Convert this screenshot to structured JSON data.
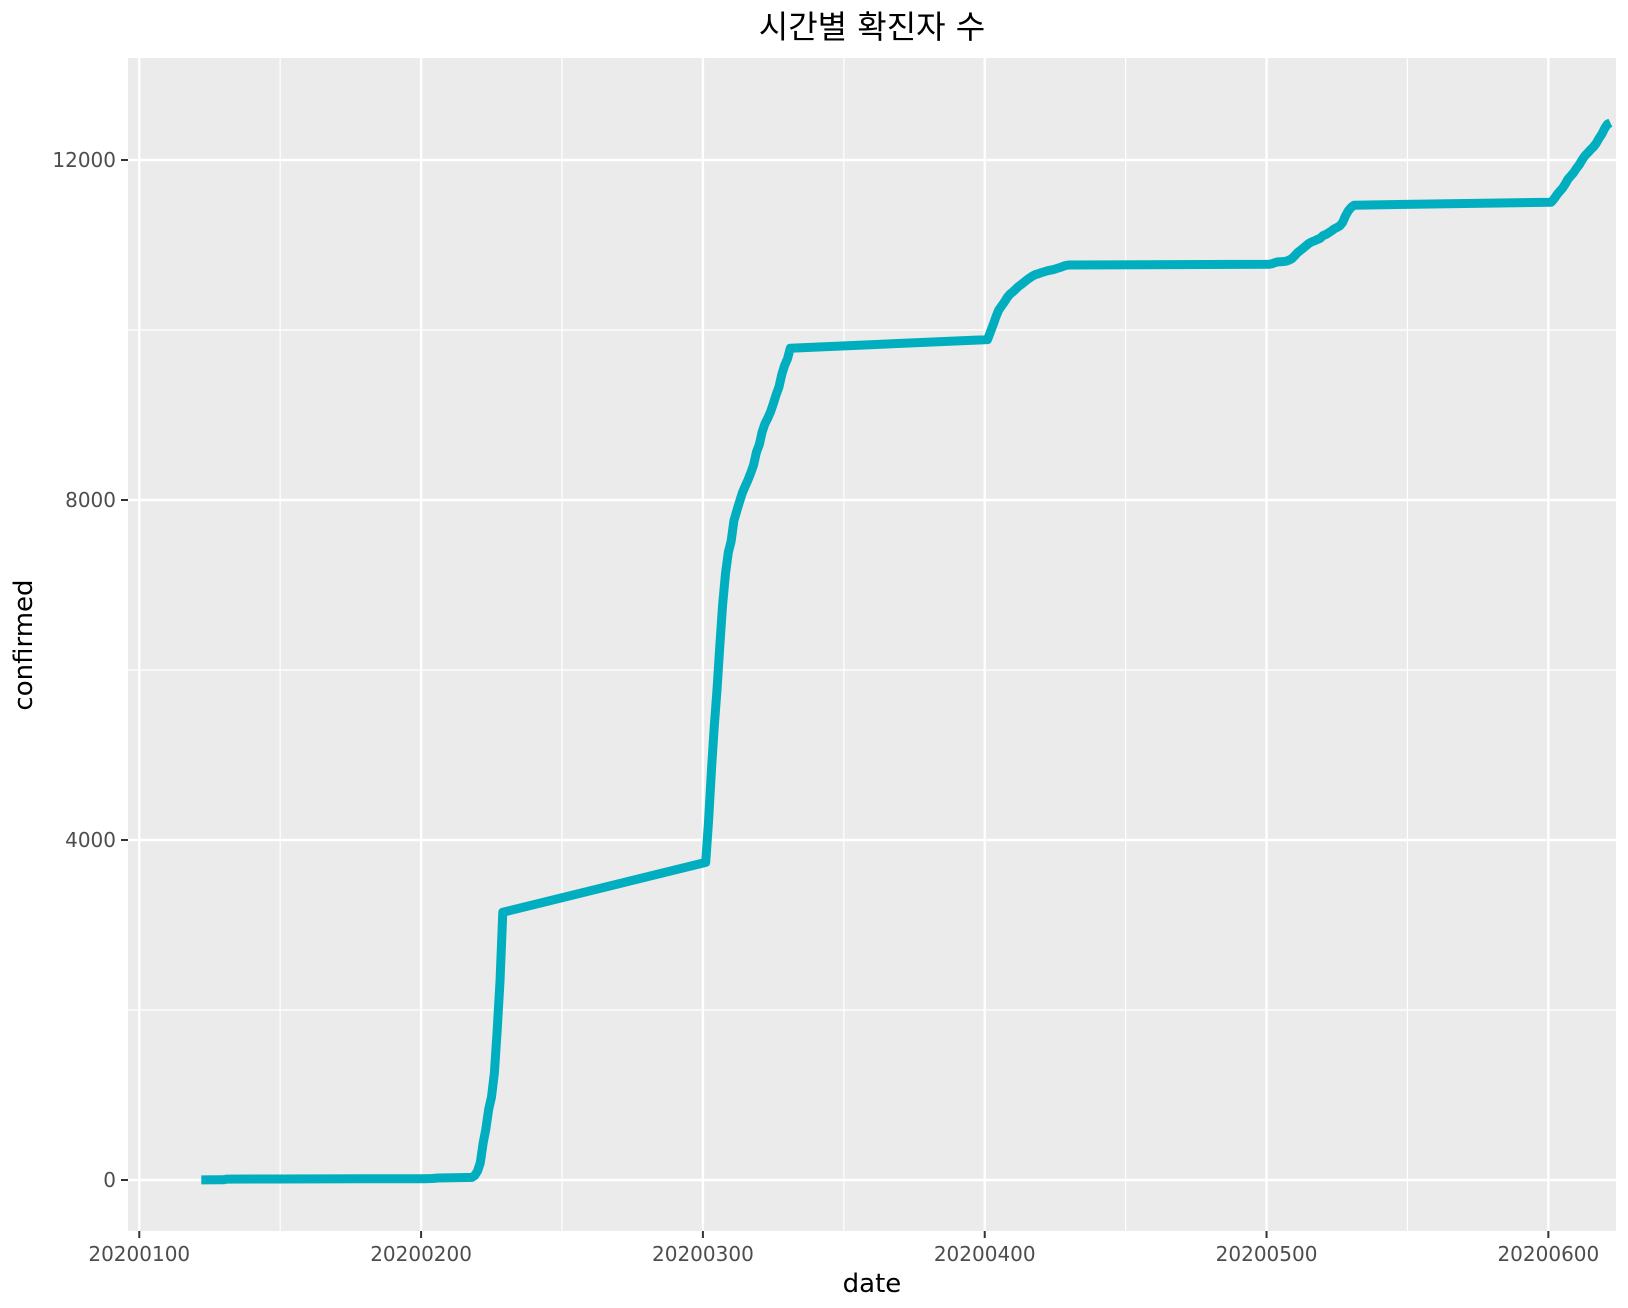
{
  "chart_data": {
    "type": "line",
    "title": "시간별 확진자 수",
    "xlabel": "date",
    "ylabel": "confirmed",
    "xlim": [
      20200096,
      20200624
    ],
    "ylim": [
      -600,
      13200
    ],
    "xticks": [
      {
        "value": 20200100,
        "label": "20200100"
      },
      {
        "value": 20200200,
        "label": "20200200"
      },
      {
        "value": 20200300,
        "label": "20200300"
      },
      {
        "value": 20200400,
        "label": "20200400"
      },
      {
        "value": 20200500,
        "label": "20200500"
      },
      {
        "value": 20200600,
        "label": "20200600"
      }
    ],
    "xminor": [
      20200150,
      20200250,
      20200350,
      20200450,
      20200550
    ],
    "yticks": [
      {
        "value": 0,
        "label": "0"
      },
      {
        "value": 4000,
        "label": "4000"
      },
      {
        "value": 8000,
        "label": "8000"
      },
      {
        "value": 12000,
        "label": "12000"
      }
    ],
    "yminor": [
      2000,
      6000,
      10000
    ],
    "grid": true,
    "series_color": "#00aebf",
    "background_color": "#ebebeb",
    "gridline_color": "#ffffff",
    "series": [
      {
        "x": [
          20200122,
          20200128,
          20200130,
          20200131,
          20200150,
          20200180,
          20200201,
          20200204,
          20200206,
          20200216,
          20200217,
          20200218,
          20200219,
          20200220,
          20200221,
          20200222,
          20200223,
          20200224,
          20200225,
          20200226,
          20200227,
          20200228,
          20200229,
          20200301,
          20200302,
          20200303,
          20200304,
          20200305,
          20200306,
          20200307,
          20200308,
          20200309,
          20200310,
          20200311,
          20200312,
          20200313,
          20200314,
          20200315,
          20200316,
          20200317,
          20200318,
          20200319,
          20200320,
          20200321,
          20200322,
          20200323,
          20200324,
          20200325,
          20200326,
          20200327,
          20200328,
          20200329,
          20200330,
          20200331,
          20200401,
          20200402,
          20200403,
          20200404,
          20200405,
          20200406,
          20200407,
          20200408,
          20200409,
          20200410,
          20200411,
          20200412,
          20200413,
          20200414,
          20200415,
          20200416,
          20200417,
          20200418,
          20200419,
          20200420,
          20200421,
          20200422,
          20200423,
          20200424,
          20200425,
          20200426,
          20200427,
          20200428,
          20200429,
          20200430,
          20200501,
          20200502,
          20200503,
          20200504,
          20200505,
          20200506,
          20200507,
          20200508,
          20200509,
          20200510,
          20200511,
          20200512,
          20200513,
          20200514,
          20200515,
          20200516,
          20200517,
          20200518,
          20200519,
          20200520,
          20200521,
          20200522,
          20200523,
          20200524,
          20200525,
          20200526,
          20200527,
          20200528,
          20200529,
          20200530,
          20200531,
          20200601,
          20200602,
          20200603,
          20200604,
          20200605,
          20200606,
          20200607,
          20200608,
          20200609,
          20200610,
          20200611,
          20200612,
          20200613,
          20200614,
          20200615,
          20200616,
          20200617,
          20200618,
          20200619,
          20200620,
          20200621,
          20200622
        ],
        "y": [
          1,
          2,
          4,
          11,
          12,
          15,
          15,
          18,
          23,
          29,
          30,
          31,
          51,
          104,
          204,
          433,
          602,
          833,
          977,
          1261,
          1766,
          2337,
          3150,
          3736,
          4212,
          4812,
          5328,
          5766,
          6284,
          6767,
          7134,
          7382,
          7513,
          7755,
          7869,
          7979,
          8086,
          8162,
          8236,
          8320,
          8413,
          8565,
          8652,
          8799,
          8897,
          8961,
          9037,
          9137,
          9241,
          9332,
          9478,
          9583,
          9661,
          9786,
          9887,
          9976,
          10062,
          10156,
          10237,
          10284,
          10331,
          10384,
          10423,
          10450,
          10480,
          10512,
          10537,
          10564,
          10591,
          10613,
          10635,
          10653,
          10661,
          10674,
          10683,
          10694,
          10702,
          10708,
          10718,
          10728,
          10738,
          10752,
          10761,
          10765,
          10774,
          10780,
          10793,
          10801,
          10804,
          10806,
          10810,
          10822,
          10840,
          10874,
          10909,
          10936,
          10962,
          10991,
          11018,
          11037,
          11050,
          11065,
          11078,
          11110,
          11122,
          11142,
          11165,
          11190,
          11206,
          11225,
          11265,
          11344,
          11402,
          11441,
          11468,
          11503,
          11541,
          11590,
          11629,
          11668,
          11719,
          11776,
          11814,
          11852,
          11902,
          11947,
          12003,
          12051,
          12085,
          12121,
          12155,
          12198,
          12257,
          12306,
          12373,
          12421,
          12438
        ]
      }
    ]
  }
}
